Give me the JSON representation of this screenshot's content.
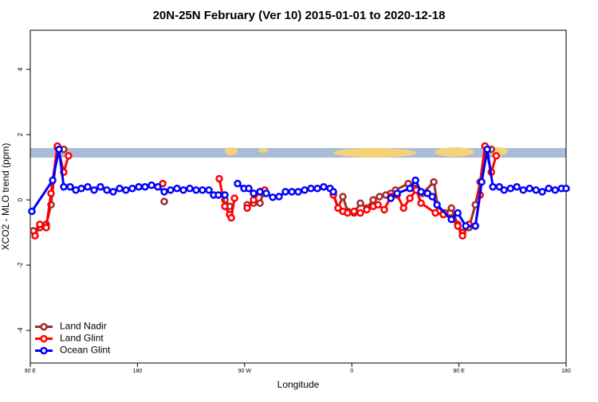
{
  "chart_data": {
    "type": "line",
    "title": "20N-25N February (Ver 10)   2015-01-01 to 2020-12-18",
    "xlabel": "Longitude",
    "ylabel": "XCO2 - MLO trend (ppm)",
    "xlim": [
      90,
      540
    ],
    "ylim": [
      -5,
      5.2
    ],
    "xticks": [
      {
        "value": 90,
        "label": "90 E"
      },
      180,
      {
        "value": 270,
        "label": "90 W"
      },
      {
        "value": 360,
        "label": "0"
      },
      {
        "value": 450,
        "label": "90 E"
      },
      {
        "value": 540,
        "label": "180"
      }
    ],
    "yticks": [
      -4,
      -2,
      0,
      2,
      4
    ],
    "legend": "bottomleft",
    "series": [
      {
        "name": "Land Nadir",
        "color": "#a52a2a",
        "x": [
          92.7,
          98,
          103.4,
          107.4,
          112.8,
          118.1,
          160,
          202.5,
          240,
          253.4,
          257.4,
          266,
          272.2,
          277.5,
          282.9,
          285.6,
          340,
          344.5,
          348.5,
          352.5,
          356.5,
          361.9,
          367.2,
          372.6,
          378,
          383.3,
          388.6,
          392.8,
          396.7,
          407.4,
          412.8,
          419.5,
          428.9,
          432.9,
          438.3,
          443.7,
          449,
          453,
          458.4,
          463.8,
          467.8,
          471.9,
          477.2
        ],
        "values": [
          -0.95,
          -0.85,
          -0.75,
          -0.15,
          1.6,
          1.55,
          null,
          -0.05,
          null,
          0,
          -0.2,
          null,
          -0.15,
          -0.1,
          -0.1,
          0.2,
          null,
          0.2,
          -0.25,
          0.1,
          -0.35,
          -0.4,
          -0.1,
          -0.25,
          0,
          0.1,
          0.15,
          0.2,
          0.3,
          0.5,
          0.35,
          0.2,
          0.55,
          -0.35,
          -0.4,
          -0.25,
          -0.75,
          -1.0,
          -0.85,
          -0.15,
          0.55,
          1.65,
          1.55
        ]
      },
      {
        "name": "Land Glint",
        "color": "#ff0000",
        "x": [
          94,
          98,
          103.4,
          107.4,
          112.8,
          118.1,
          122.1,
          160,
          201.2,
          230,
          248.7,
          253.4,
          257.4,
          258.8,
          261.5,
          266,
          272.2,
          277.5,
          282.9,
          286.9,
          340,
          344.5,
          348.5,
          352.5,
          356.5,
          361.9,
          367.2,
          372.6,
          378,
          382,
          387.3,
          392.8,
          398.1,
          403.5,
          408.8,
          414.2,
          418.2,
          430.2,
          436.9,
          443.7,
          449,
          453,
          458.4,
          463.8,
          467.8,
          471.9,
          477.2,
          481.3
        ],
        "values": [
          -1.1,
          -0.75,
          -0.85,
          0.2,
          1.65,
          0.85,
          1.35,
          null,
          0.5,
          null,
          0.65,
          -0.2,
          -0.45,
          -0.55,
          0.05,
          null,
          -0.25,
          0,
          0.25,
          0.3,
          null,
          0.15,
          -0.25,
          -0.35,
          -0.4,
          -0.35,
          -0.4,
          -0.3,
          -0.2,
          -0.15,
          -0.3,
          0.1,
          0.15,
          -0.25,
          0.05,
          0.3,
          -0.1,
          -0.4,
          -0.45,
          -0.55,
          -0.8,
          -1.1,
          -0.75,
          -0.8,
          0.15,
          1.65,
          0.85,
          1.35
        ]
      },
      {
        "name": "Ocean Glint",
        "color": "#0000ff",
        "x": [
          91.3,
          108.8,
          114.1,
          118.1,
          123.5,
          128.2,
          132.9,
          138.2,
          143.6,
          148.9,
          154.3,
          159.6,
          165,
          170.3,
          175.7,
          181.1,
          186.4,
          191.8,
          197.1,
          202.5,
          207.8,
          213.2,
          218.6,
          223.9,
          229.3,
          234.6,
          240,
          244,
          248,
          253.4,
          258,
          264.1,
          269.5,
          273.5,
          277.5,
          282.9,
          288.2,
          293.6,
          298.9,
          304.3,
          309.7,
          315,
          320.4,
          325.7,
          331.1,
          336.4,
          341.8,
          344.5,
          370,
          392.8,
          398.1,
          408.8,
          413.5,
          418.2,
          423.6,
          427.6,
          431.6,
          443.7,
          449,
          455.7,
          463.8,
          469.1,
          473.8,
          478.5,
          483.9,
          487.9,
          493.3,
          498.6,
          504,
          509.3,
          514.7,
          520,
          525.4,
          530.8,
          536.1,
          540
        ],
        "values": [
          -0.35,
          0.6,
          1.55,
          0.4,
          0.4,
          0.3,
          0.35,
          0.4,
          0.3,
          0.4,
          0.3,
          0.25,
          0.35,
          0.3,
          0.35,
          0.4,
          0.4,
          0.45,
          0.4,
          0.25,
          0.3,
          0.35,
          0.3,
          0.35,
          0.3,
          0.3,
          0.3,
          0.15,
          0.15,
          0.15,
          null,
          0.5,
          0.35,
          0.35,
          0.2,
          0.25,
          0.2,
          0.08,
          0.1,
          0.25,
          0.25,
          0.25,
          0.3,
          0.35,
          0.35,
          0.4,
          0.35,
          0.25,
          null,
          0.05,
          0.2,
          0.35,
          0.6,
          0.25,
          0.2,
          0.1,
          -0.15,
          -0.6,
          -0.4,
          -0.8,
          -0.8,
          0.55,
          1.55,
          0.4,
          0.4,
          0.3,
          0.35,
          0.4,
          0.3,
          0.35,
          0.3,
          0.25,
          0.35,
          0.3,
          0.35,
          0.35
        ]
      }
    ]
  }
}
